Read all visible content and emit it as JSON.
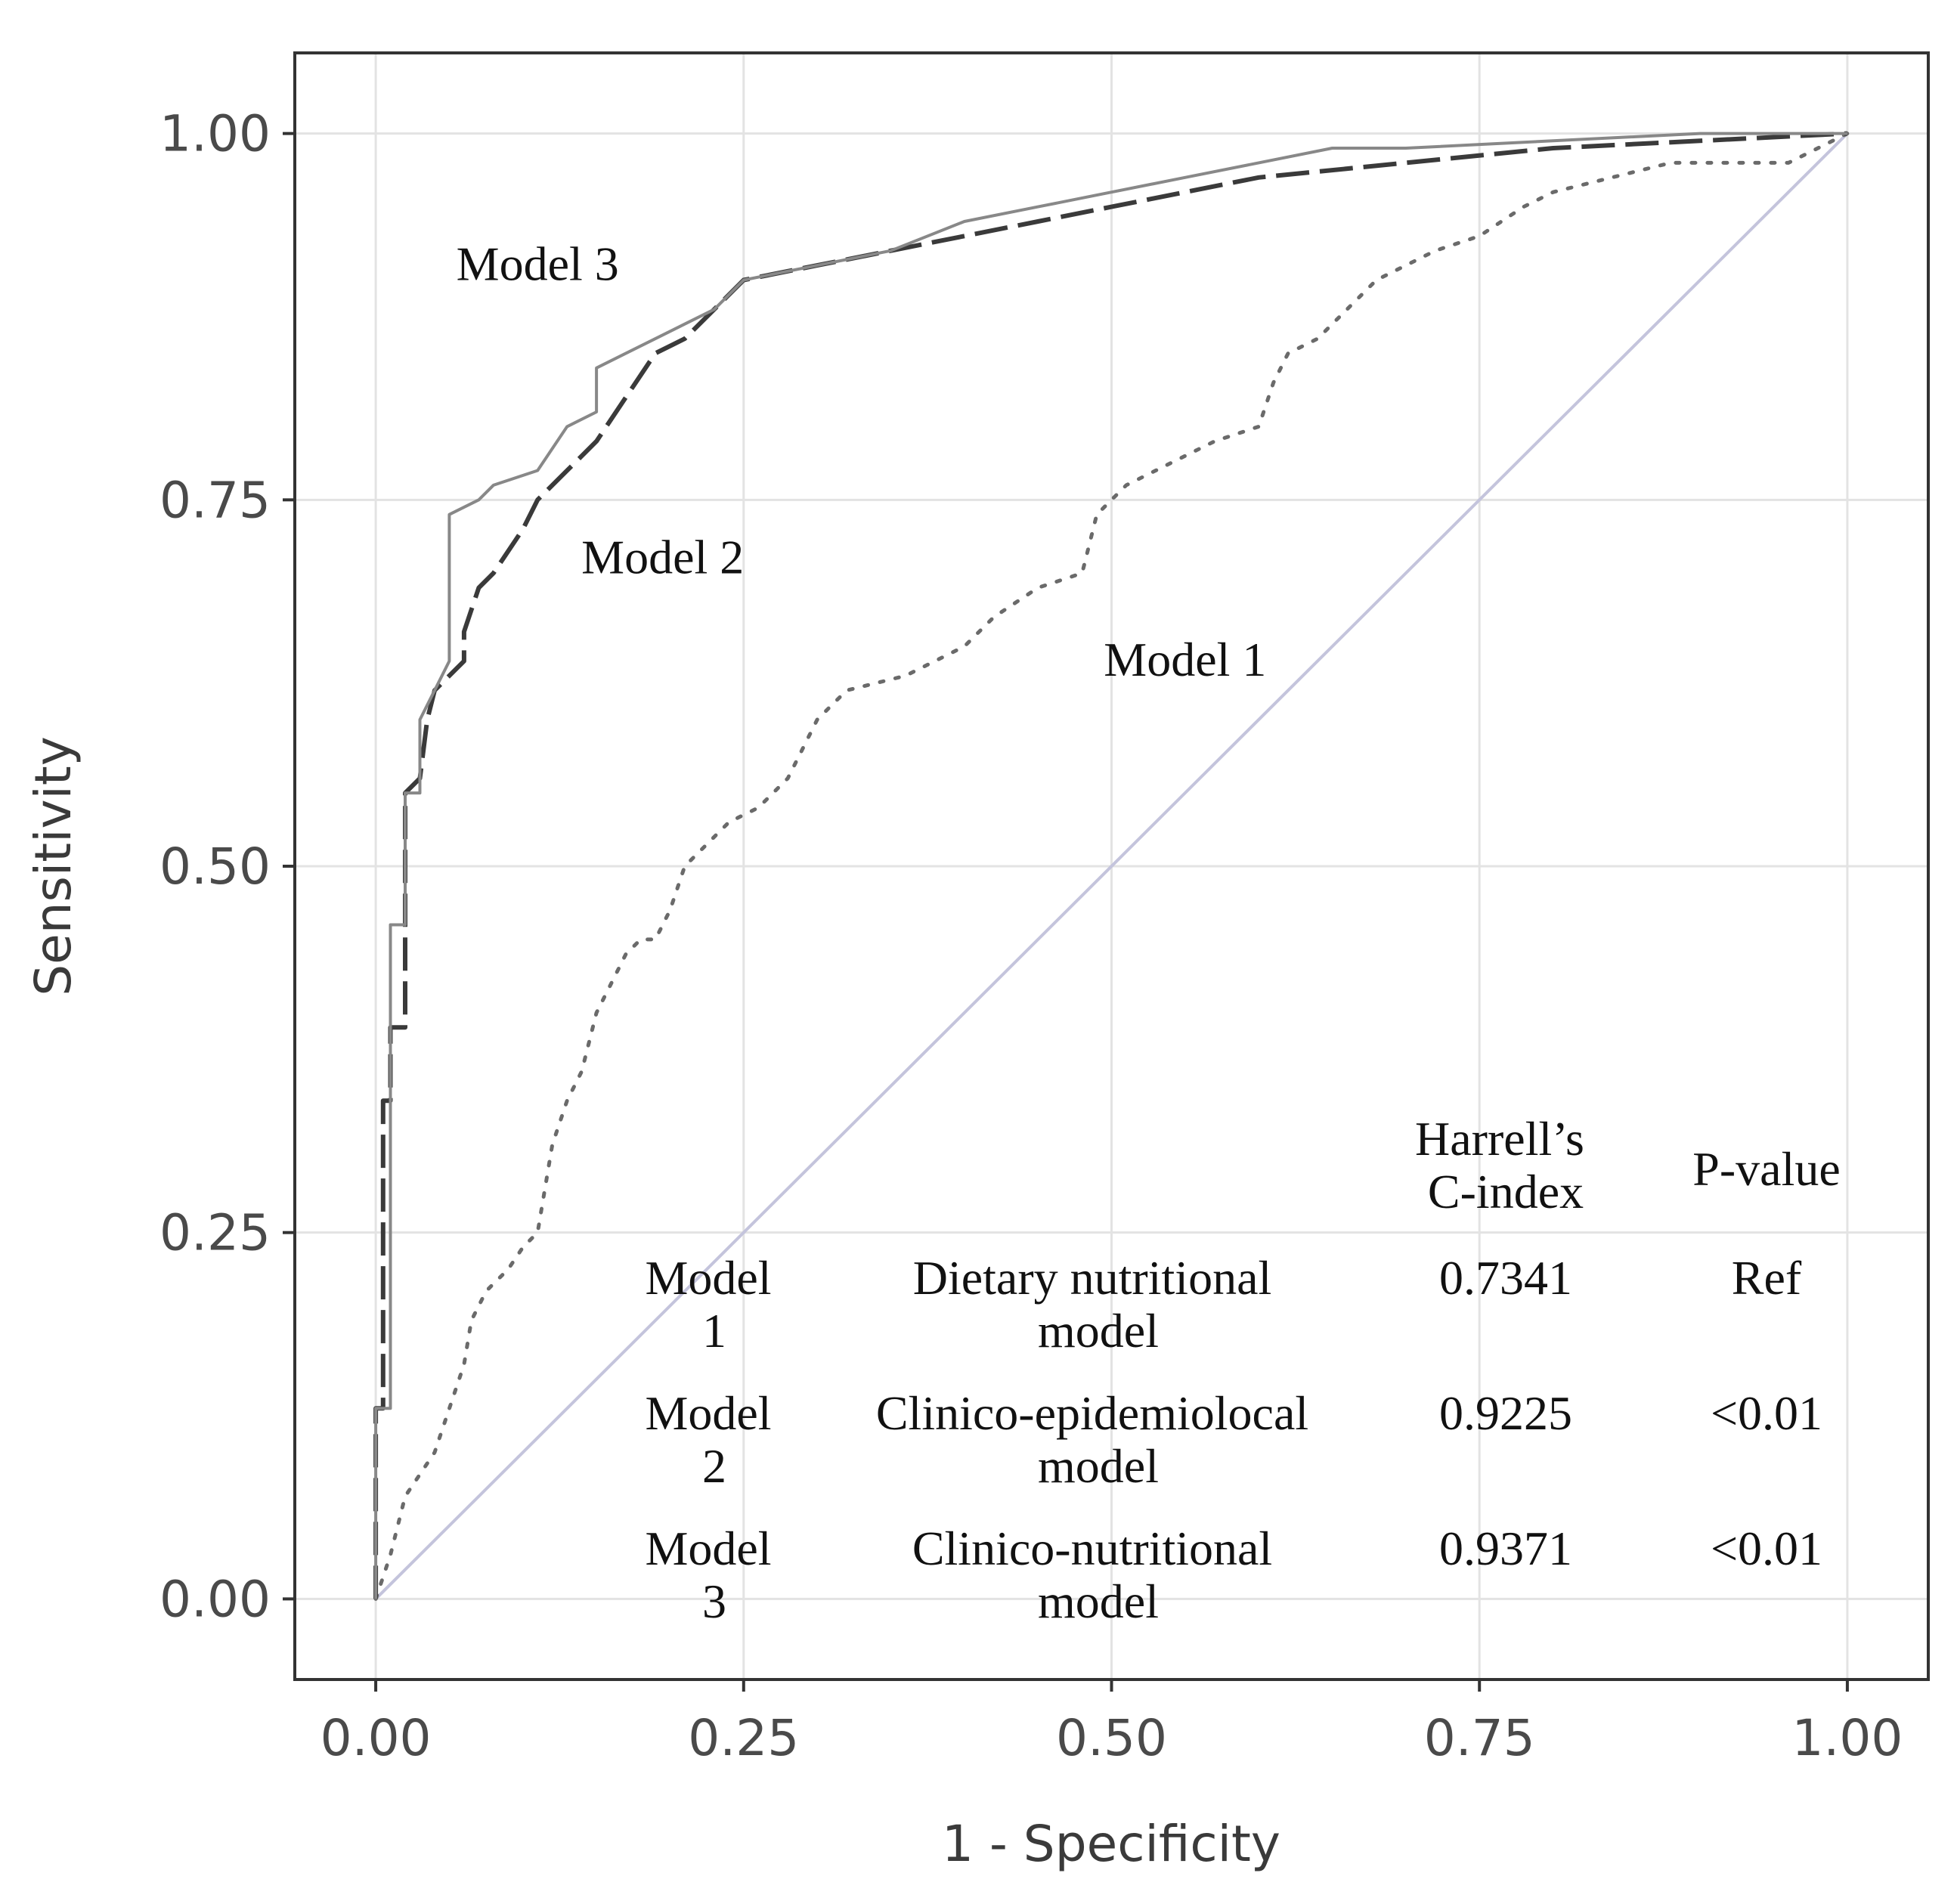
{
  "chart_data": {
    "type": "line",
    "title": "",
    "xlabel": "1 - Specificity",
    "ylabel": "Sensitivity",
    "xlim": [
      -0.055,
      1.055
    ],
    "ylim": [
      -0.055,
      1.055
    ],
    "x_ticks": [
      0.0,
      0.25,
      0.5,
      0.75,
      1.0
    ],
    "x_tick_labels": [
      "0.00",
      "0.25",
      "0.50",
      "0.75",
      "1.00"
    ],
    "y_ticks": [
      0.0,
      0.25,
      0.5,
      0.75,
      1.0
    ],
    "y_tick_labels": [
      "0.00",
      "0.25",
      "0.50",
      "0.75",
      "1.00"
    ],
    "grid": true,
    "reference_line": {
      "x": [
        0,
        1
      ],
      "y": [
        0,
        1
      ],
      "color": "#c4c4dc"
    },
    "series": [
      {
        "name": "Model 1",
        "style": "dotted",
        "color": "#6a6a6a",
        "x": [
          0.0,
          0.01,
          0.02,
          0.04,
          0.06,
          0.065,
          0.075,
          0.08,
          0.09,
          0.1,
          0.11,
          0.12,
          0.13,
          0.14,
          0.15,
          0.16,
          0.17,
          0.18,
          0.19,
          0.2,
          0.21,
          0.22,
          0.23,
          0.24,
          0.26,
          0.28,
          0.29,
          0.3,
          0.31,
          0.32,
          0.36,
          0.38,
          0.4,
          0.42,
          0.45,
          0.48,
          0.49,
          0.5,
          0.51,
          0.53,
          0.55,
          0.57,
          0.6,
          0.61,
          0.62,
          0.64,
          0.66,
          0.68,
          0.7,
          0.72,
          0.75,
          0.78,
          0.8,
          0.84,
          0.88,
          0.92,
          0.96,
          0.98,
          1.0
        ],
        "y": [
          0.0,
          0.03,
          0.07,
          0.1,
          0.16,
          0.19,
          0.21,
          0.215,
          0.225,
          0.24,
          0.25,
          0.31,
          0.34,
          0.36,
          0.4,
          0.42,
          0.44,
          0.45,
          0.45,
          0.47,
          0.5,
          0.51,
          0.52,
          0.53,
          0.54,
          0.56,
          0.58,
          0.6,
          0.61,
          0.62,
          0.63,
          0.64,
          0.65,
          0.67,
          0.69,
          0.7,
          0.74,
          0.75,
          0.76,
          0.77,
          0.78,
          0.79,
          0.8,
          0.83,
          0.85,
          0.86,
          0.88,
          0.9,
          0.91,
          0.92,
          0.93,
          0.95,
          0.96,
          0.97,
          0.98,
          0.98,
          0.98,
          0.99,
          1.0
        ]
      },
      {
        "name": "Model 2",
        "style": "dashed",
        "color": "#3a3a3a",
        "x": [
          0.0,
          0.0,
          0.005,
          0.005,
          0.01,
          0.01,
          0.02,
          0.02,
          0.03,
          0.035,
          0.04,
          0.05,
          0.06,
          0.06,
          0.07,
          0.08,
          0.1,
          0.11,
          0.13,
          0.15,
          0.17,
          0.19,
          0.21,
          0.23,
          0.25,
          0.3,
          0.35,
          0.4,
          0.45,
          0.5,
          0.55,
          0.6,
          0.7,
          0.8,
          0.9,
          1.0
        ],
        "y": [
          0.0,
          0.13,
          0.13,
          0.34,
          0.34,
          0.39,
          0.39,
          0.55,
          0.56,
          0.6,
          0.62,
          0.63,
          0.64,
          0.66,
          0.69,
          0.7,
          0.73,
          0.75,
          0.77,
          0.79,
          0.82,
          0.85,
          0.86,
          0.88,
          0.9,
          0.91,
          0.92,
          0.93,
          0.94,
          0.95,
          0.96,
          0.97,
          0.98,
          0.99,
          0.995,
          1.0
        ]
      },
      {
        "name": "Model 3",
        "style": "solid",
        "color": "#888888",
        "x": [
          0.0,
          0.0,
          0.01,
          0.01,
          0.02,
          0.02,
          0.03,
          0.03,
          0.04,
          0.05,
          0.05,
          0.07,
          0.08,
          0.11,
          0.13,
          0.15,
          0.15,
          0.17,
          0.19,
          0.21,
          0.23,
          0.24,
          0.25,
          0.3,
          0.35,
          0.4,
          0.45,
          0.5,
          0.55,
          0.6,
          0.65,
          0.7,
          0.8,
          0.9,
          1.0
        ],
        "y": [
          0.0,
          0.13,
          0.13,
          0.46,
          0.46,
          0.55,
          0.55,
          0.6,
          0.62,
          0.64,
          0.74,
          0.75,
          0.76,
          0.77,
          0.8,
          0.81,
          0.84,
          0.85,
          0.86,
          0.87,
          0.88,
          0.89,
          0.9,
          0.91,
          0.92,
          0.94,
          0.95,
          0.96,
          0.97,
          0.98,
          0.99,
          0.99,
          0.995,
          1.0,
          1.0
        ]
      }
    ],
    "annotations": [
      {
        "text": "Model 3",
        "x": 0.11,
        "y": 0.9
      },
      {
        "text": "Model 2",
        "x": 0.195,
        "y": 0.7
      },
      {
        "text": "Model 1",
        "x": 0.55,
        "y": 0.63
      }
    ],
    "inset_table": {
      "headers": [
        "",
        "",
        "Harrell's C-index",
        "P-value"
      ],
      "header_lines": {
        "c_index": [
          "Harrell’s",
          "C-index"
        ],
        "p_value": [
          "P-value"
        ]
      },
      "rows": [
        {
          "model_lines": [
            "Model",
            "1"
          ],
          "desc_lines": [
            "Dietary  nutritional",
            "model"
          ],
          "c_index": "0.7341",
          "p_value": "Ref"
        },
        {
          "model_lines": [
            "Model",
            "2"
          ],
          "desc_lines": [
            "Clinico-epidemiolocal",
            "model"
          ],
          "c_index": "0.9225",
          "p_value": "<0.01"
        },
        {
          "model_lines": [
            "Model",
            "3"
          ],
          "desc_lines": [
            "Clinico-nutritional",
            "model"
          ],
          "c_index": "0.9371",
          "p_value": "<0.01"
        }
      ]
    }
  }
}
